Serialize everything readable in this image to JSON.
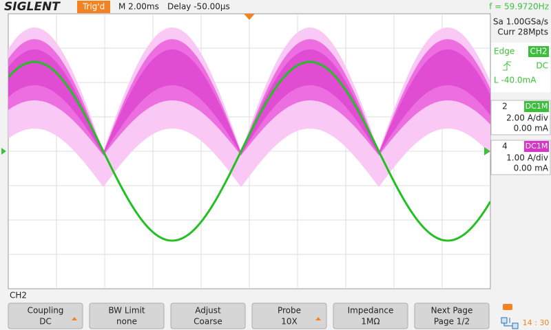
{
  "header": {
    "brand": "SIGLENT",
    "trigger_status": "Trig'd",
    "timebase": "M 2.00ms",
    "delay": "Delay -50.00μs",
    "frequency": "f = 59.9720Hz"
  },
  "side_panel": {
    "sample_rate": "Sa 1.00GSa/s",
    "memory": "Curr 28Mpts",
    "trigger": {
      "type": "Edge",
      "source": "CH2",
      "coupling": "DC",
      "level": "L -40.0mA"
    },
    "channels": [
      {
        "number": "2",
        "impedance": "DC1M",
        "scale": "2.00 A/div",
        "offset": "0.00 mA"
      },
      {
        "number": "4",
        "impedance": "DC1M",
        "scale": "1.00 A/div",
        "offset": "0.00 mA"
      }
    ]
  },
  "menu": {
    "title": "CH2",
    "buttons": [
      {
        "label": "Coupling",
        "value": "DC"
      },
      {
        "label": "BW Limit",
        "value": "none"
      },
      {
        "label": "Adjust",
        "value": "Coarse"
      },
      {
        "label": "Probe",
        "value": "10X"
      },
      {
        "label": "Impedance",
        "value": "1MΩ"
      },
      {
        "label": "Next Page",
        "value": "Page 1/2"
      }
    ],
    "clock": "14 : 30"
  }
}
